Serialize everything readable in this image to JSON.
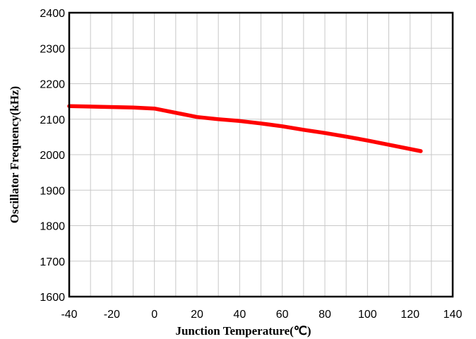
{
  "chart_data": {
    "type": "line",
    "xlabel": "Junction Temperature(℃)",
    "ylabel": "Oscillator Frequency(kHz)",
    "xlim": [
      -40,
      140
    ],
    "ylim": [
      1600,
      2400
    ],
    "x_ticks": [
      -40,
      -20,
      0,
      20,
      40,
      60,
      80,
      100,
      120,
      140
    ],
    "y_ticks": [
      1600,
      1700,
      1800,
      1900,
      2000,
      2100,
      2200,
      2300,
      2400
    ],
    "x_minor_step": 10,
    "grid": true,
    "legend": "none",
    "series": [
      {
        "color": "#ff0000",
        "x": [
          -40,
          -25,
          -10,
          0,
          10,
          20,
          30,
          40,
          50,
          60,
          70,
          80,
          90,
          100,
          110,
          125
        ],
        "y": [
          2137,
          2135,
          2133,
          2130,
          2118,
          2106,
          2100,
          2095,
          2088,
          2080,
          2070,
          2061,
          2051,
          2040,
          2028,
          2010
        ]
      }
    ]
  }
}
